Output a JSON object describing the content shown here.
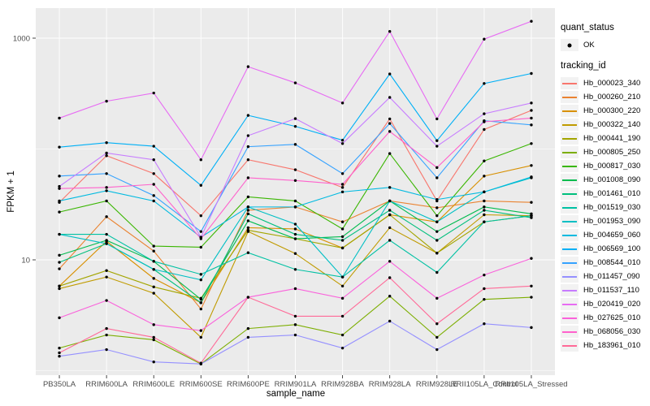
{
  "chart_data": {
    "type": "line",
    "title": "",
    "xlabel": "sample_name",
    "ylabel": "FPKM + 1",
    "y_scale": "log10",
    "y_ticks": [
      10,
      1000
    ],
    "y_minor_gridlines": [
      1,
      100
    ],
    "ylim": [
      0.9,
      1860
    ],
    "grid": "white major+minor gridlines on gray panel",
    "legend_position": "right",
    "point_color": "#000000",
    "x_categories": [
      "PB350LA",
      "RRIM600LA",
      "RRIM600LE",
      "RRIM600SE",
      "RRIM600PE",
      "RRIM901LA",
      "RRIM928BA",
      "RRIM928LA",
      "RRIM928LE",
      "RRII105LA_Control",
      "RRII105LA_Stressed"
    ],
    "series": [
      {
        "name": "Hb_000023_340",
        "color": "#F8766D",
        "values": [
          33,
          87,
          60,
          25,
          80,
          65,
          45,
          187,
          34,
          150,
          223
        ]
      },
      {
        "name": "Hb_000260_210",
        "color": "#EA8331",
        "values": [
          8.3,
          24.5,
          12,
          3.6,
          28,
          30,
          22,
          34,
          29.5,
          34,
          33
        ]
      },
      {
        "name": "Hb_000300_220",
        "color": "#D89000",
        "values": [
          5.8,
          14.7,
          6.8,
          4.1,
          19.5,
          19,
          12.8,
          25.5,
          22,
          57,
          71
        ]
      },
      {
        "name": "Hb_000322_140",
        "color": "#C09B00",
        "values": [
          5.5,
          7.0,
          5.0,
          2.0,
          18,
          11.4,
          5.8,
          19.5,
          11.5,
          25.5,
          25
        ]
      },
      {
        "name": "Hb_000441_190",
        "color": "#A3A500",
        "values": [
          5.8,
          8.0,
          5.7,
          4.5,
          18.5,
          15.5,
          12.8,
          25.5,
          11.5,
          22,
          25
        ]
      },
      {
        "name": "Hb_000805_250",
        "color": "#7CAE00",
        "values": [
          1.6,
          2.1,
          1.9,
          1.15,
          2.4,
          2.6,
          2.1,
          4.7,
          2.0,
          4.4,
          4.6
        ]
      },
      {
        "name": "Hb_000817_030",
        "color": "#39B600",
        "values": [
          27,
          34,
          13.3,
          13,
          37,
          34,
          19,
          91,
          25,
          78,
          112
        ]
      },
      {
        "name": "Hb_001008_090",
        "color": "#00BB4E",
        "values": [
          11,
          15,
          9.7,
          4.4,
          22.5,
          15.5,
          16.2,
          34,
          18,
          30,
          26
        ]
      },
      {
        "name": "Hb_001461_010",
        "color": "#00BF7D",
        "values": [
          9.5,
          14,
          8.2,
          4.1,
          26,
          17,
          15,
          28,
          15,
          28,
          24
        ]
      },
      {
        "name": "Hb_001519_030",
        "color": "#00C1A3",
        "values": [
          17,
          17,
          9.7,
          7.4,
          11.6,
          8.2,
          7.0,
          15,
          7.7,
          22,
          25
        ]
      },
      {
        "name": "Hb_001953_090",
        "color": "#00BFC4",
        "values": [
          17,
          14,
          8.2,
          6.6,
          30,
          21,
          7.0,
          34,
          22,
          41,
          55
        ]
      },
      {
        "name": "Hb_004659_060",
        "color": "#00BAE0",
        "values": [
          34,
          42,
          34,
          16,
          30,
          30,
          41,
          45,
          35,
          41,
          56
        ]
      },
      {
        "name": "Hb_006569_100",
        "color": "#00B0F6",
        "values": [
          104,
          114,
          106,
          47,
          201,
          160,
          120,
          475,
          119,
          390,
          480
        ]
      },
      {
        "name": "Hb_008544_010",
        "color": "#35A2FF",
        "values": [
          57,
          60,
          38,
          18,
          105,
          110,
          60,
          170,
          55,
          180,
          165
        ]
      },
      {
        "name": "Hb_011457_090",
        "color": "#9590FF",
        "values": [
          1.35,
          1.55,
          1.2,
          1.15,
          2.0,
          2.1,
          1.6,
          2.8,
          1.55,
          2.65,
          2.45
        ]
      },
      {
        "name": "Hb_011537_110",
        "color": "#C77CFF",
        "values": [
          46,
          92,
          80,
          16,
          132,
          188,
          112,
          292,
          106,
          208,
          260
        ]
      },
      {
        "name": "Hb_020419_020",
        "color": "#E76BF3",
        "values": [
          190,
          270,
          320,
          80,
          553,
          395,
          260,
          1150,
          187,
          980,
          1420
        ]
      },
      {
        "name": "Hb_027625_010",
        "color": "#FA62DB",
        "values": [
          3.0,
          4.3,
          2.6,
          2.3,
          4.6,
          5.5,
          4.5,
          9.7,
          4.5,
          7.3,
          10.3
        ]
      },
      {
        "name": "Hb_068056_030",
        "color": "#FF61CC",
        "values": [
          44,
          45,
          48,
          15.5,
          55,
          52,
          48,
          144,
          68,
          176,
          190
        ]
      },
      {
        "name": "Hb_183961_010",
        "color": "#FF6A98",
        "values": [
          1.45,
          2.4,
          2.0,
          1.17,
          4.6,
          3.1,
          3.1,
          6.9,
          2.65,
          5.5,
          5.8
        ]
      }
    ]
  },
  "legend": {
    "quant_status_title": "quant_status",
    "quant_status_items": [
      {
        "label": "OK",
        "symbol": "black-point"
      }
    ],
    "tracking_id_title": "tracking_id"
  },
  "panel": {
    "bg": "#EBEBEB",
    "grid_color": "#FFFFFF",
    "tick_color": "#333333",
    "tick_label_color": "#4D4D4D",
    "legend_key_bg": "#F2F2F2"
  }
}
